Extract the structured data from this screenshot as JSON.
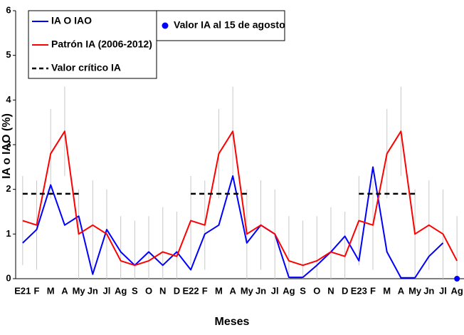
{
  "chart_data": {
    "type": "line",
    "xlabel": "Meses",
    "ylabel": "IA o IAO (%)",
    "categories": [
      "E21",
      "F",
      "M",
      "A",
      "My",
      "Jn",
      "Jl",
      "Ag",
      "S",
      "O",
      "N",
      "D",
      "E22",
      "F",
      "M",
      "A",
      "My",
      "Jn",
      "Jl",
      "Ag",
      "S",
      "O",
      "N",
      "D",
      "E23",
      "F",
      "M",
      "A",
      "My",
      "Jn",
      "Jl",
      "Ag"
    ],
    "ylim": [
      0,
      6
    ],
    "yticks": [
      0,
      1,
      2,
      3,
      4,
      5,
      6
    ],
    "series": [
      {
        "name": "IA O IAO",
        "color": "#0000ff",
        "values": [
          0.8,
          1.1,
          2.1,
          1.2,
          1.4,
          0.1,
          1.1,
          0.6,
          0.3,
          0.6,
          0.3,
          0.6,
          0.2,
          1.0,
          1.2,
          2.3,
          0.8,
          1.2,
          1.0,
          0.03,
          0.03,
          0.3,
          0.6,
          0.95,
          0.4,
          2.5,
          0.6,
          0.02,
          0.02,
          0.5,
          0.8,
          null
        ]
      },
      {
        "name": "Patrón IA (2006-2012)",
        "color": "#ff0000",
        "values": [
          1.3,
          1.2,
          2.8,
          3.3,
          1.0,
          1.2,
          1.0,
          0.4,
          0.3,
          0.4,
          0.6,
          0.5,
          1.3,
          1.2,
          2.8,
          3.3,
          1.0,
          1.2,
          1.0,
          0.4,
          0.3,
          0.4,
          0.6,
          0.5,
          1.3,
          1.2,
          2.8,
          3.3,
          1.0,
          1.2,
          1.0,
          0.4
        ],
        "errors": [
          1,
          1,
          1,
          1,
          1,
          1,
          1,
          1,
          1,
          1,
          1,
          1,
          1,
          1,
          1,
          1,
          1,
          1,
          1,
          1,
          1,
          1,
          1,
          1,
          1,
          1,
          1,
          1,
          1,
          1,
          1,
          1
        ],
        "error_color": "#c8c8c8"
      },
      {
        "name": "Valor crítico IA",
        "color": "#000000",
        "dashed": true,
        "values": [
          1.9,
          1.9,
          1.9,
          1.9,
          1.9,
          null,
          null,
          null,
          null,
          null,
          null,
          null,
          1.9,
          1.9,
          1.9,
          1.9,
          1.9,
          null,
          null,
          null,
          null,
          null,
          null,
          null,
          1.9,
          1.9,
          1.9,
          1.9,
          1.9,
          null,
          null,
          null
        ]
      },
      {
        "name": "Valor IA al 15 de agosto",
        "color": "#0000ff",
        "marker": "dot",
        "values": [
          null,
          null,
          null,
          null,
          null,
          null,
          null,
          null,
          null,
          null,
          null,
          null,
          null,
          null,
          null,
          null,
          null,
          null,
          null,
          null,
          null,
          null,
          null,
          null,
          null,
          null,
          null,
          null,
          null,
          null,
          null,
          0
        ]
      }
    ]
  }
}
